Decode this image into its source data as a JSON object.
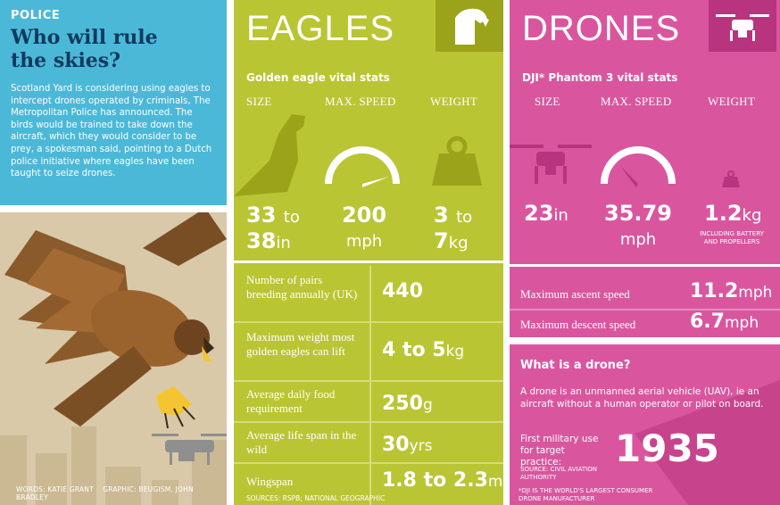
{
  "left": {
    "kicker": "POLICE",
    "headline": "Who will rule the skies?",
    "body": "Scotland Yard is considering using eagles to intercept drones operated by criminals, The Metropolitan Police has announced. The birds would be trained to take down the aircraft, which they would consider to be prey, a spokesman said, pointing to a Dutch police initiative where eagles have been taught to seize drones.",
    "credit_words": "WORDS: KATIE GRANT",
    "credit_graphic": "GRAPHIC: BEUGISM, JOHN BRADLEY"
  },
  "eagles": {
    "title": "EAGLES",
    "subtitle": "Golden eagle vital stats",
    "headers": [
      "SIZE",
      "MAX. SPEED",
      "WEIGHT"
    ],
    "size": {
      "line1": "33",
      "to": "to",
      "line2": "38",
      "unit": "in"
    },
    "speed": {
      "value": "200",
      "unit": "mph"
    },
    "weight": {
      "v1": "3",
      "to": "to",
      "v2": "7",
      "unit": "kg"
    },
    "rows": [
      {
        "label": "Number of pairs breeding annually (UK)",
        "value": "440",
        "unit": ""
      },
      {
        "label": "Maximum weight most golden eagles can lift",
        "value": "4 to 5",
        "unit": "kg"
      },
      {
        "label": "Average daily food requirement",
        "value": "250",
        "unit": "g"
      },
      {
        "label": "Average life span in the wild",
        "value": "30",
        "unit": "yrs"
      },
      {
        "label": "Wingspan",
        "value": "1.8 to 2.3",
        "unit": "m"
      }
    ],
    "sources": "SOURCES: RSPB; NATIONAL GEOGRAPHIC",
    "colors": {
      "bg": "#bac534",
      "icon_bg": "#9aa31a"
    }
  },
  "drones": {
    "title": "DRONES",
    "subtitle": "DJI* Phantom 3 vital stats",
    "headers": [
      "SIZE",
      "MAX. SPEED",
      "WEIGHT"
    ],
    "size": {
      "value": "23",
      "unit": "in"
    },
    "speed": {
      "value": "35.79",
      "unit": "mph"
    },
    "weight": {
      "value": "1.2",
      "unit": "kg",
      "note": "INCLUDING BATTERY AND PROPELLERS"
    },
    "ascent": {
      "label": "Maximum ascent speed",
      "value": "11.2",
      "unit": "mph"
    },
    "descent": {
      "label": "Maximum descent speed",
      "value": "6.7",
      "unit": "mph"
    },
    "what_title": "What is a drone?",
    "what_body": "A drone is an unmanned aerial vehicle (UAV), ie an aircraft without a human operator or pilot on board.",
    "first_use_label": "First military use for target practice:",
    "first_use_year": "1935",
    "first_use_source": "SOURCE: CIVIL AVIATION AUTHORITY",
    "footnote": "*DJI IS THE WORLD'S LARGEST CONSUMER DRONE MANUFACTURER",
    "colors": {
      "bg": "#d9569f",
      "icon_bg": "#b8347e"
    }
  }
}
